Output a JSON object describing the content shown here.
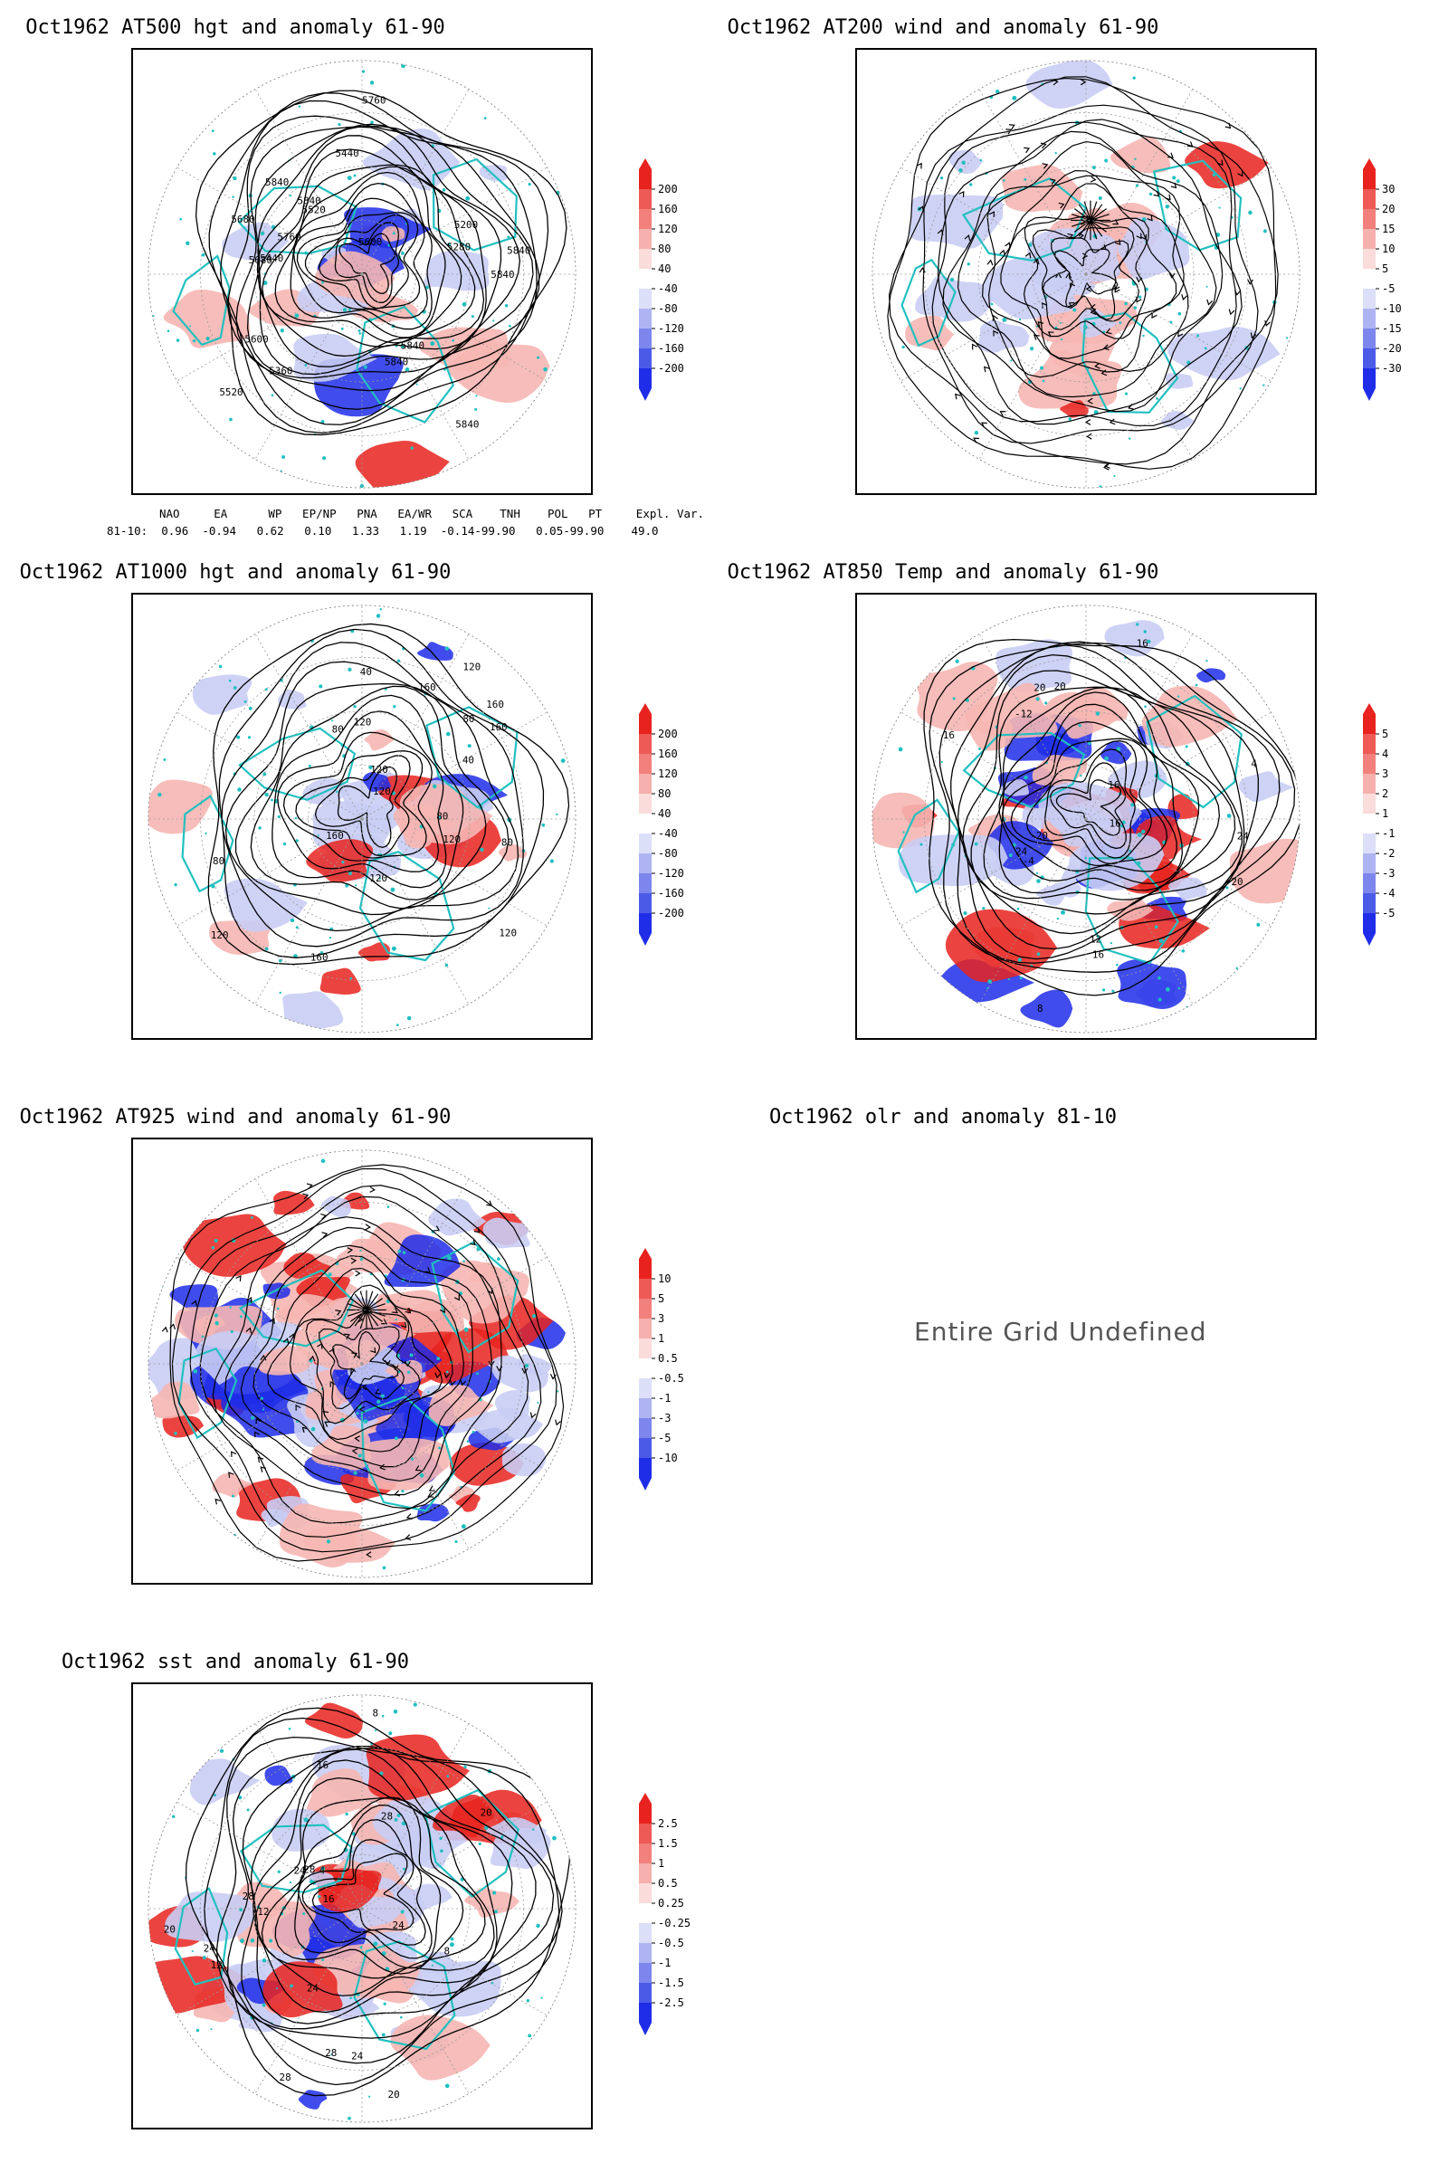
{
  "panels": [
    {
      "id": "p1",
      "title": "Oct1962 AT500 hgt and anomaly 61-90",
      "contour_labels": [
        "5840",
        "5840",
        "5840",
        "5840",
        "5760",
        "5680",
        "5600",
        "5520",
        "5440",
        "5200",
        "5280",
        "5360",
        "5440",
        "5520",
        "5600",
        "5680",
        "5760",
        "5840",
        "5840",
        "5840"
      ],
      "colorbar": [
        "200",
        "160",
        "120",
        "80",
        "40",
        "-40",
        "-80",
        "-120",
        "-160",
        "-200"
      ]
    },
    {
      "id": "p2",
      "title": "Oct1962 AT200 wind and anomaly 61-90",
      "colorbar": [
        "30",
        "20",
        "15",
        "10",
        "5",
        "-5",
        "-10",
        "-15",
        "-20",
        "-30"
      ]
    },
    {
      "id": "p3",
      "title": "Oct1962 AT1000 hgt and anomaly 61-90",
      "contour_labels": [
        "120",
        "160",
        "160",
        "120",
        "160",
        "80",
        "80",
        "120",
        "120",
        "120",
        "80",
        "160",
        "120",
        "160",
        "120",
        "80",
        "120",
        "40",
        "40",
        "80"
      ],
      "colorbar": [
        "200",
        "160",
        "120",
        "80",
        "40",
        "-40",
        "-80",
        "-120",
        "-160",
        "-200"
      ]
    },
    {
      "id": "p4",
      "title": "Oct1962 AT850 Temp and anomaly 61-90",
      "contour_labels": [
        "16",
        "12",
        "16",
        "8",
        "4",
        "-4",
        "-12",
        "-20",
        "16",
        "20",
        "24",
        "24",
        "20",
        "16",
        "16",
        "20"
      ],
      "colorbar": [
        "5",
        "4",
        "3",
        "2",
        "1",
        "-1",
        "-2",
        "-3",
        "-4",
        "-5"
      ]
    },
    {
      "id": "p5",
      "title": "Oct1962 AT925 wind and anomaly 61-90",
      "colorbar": [
        "10",
        "5",
        "3",
        "1",
        "0.5",
        "-0.5",
        "-1",
        "-3",
        "-5",
        "-10"
      ]
    },
    {
      "id": "p6",
      "title": "Oct1962 olr and anomaly 81-10",
      "undefined_text": "Entire Grid Undefined"
    },
    {
      "id": "p7",
      "title": "Oct1962 sst and anomaly 61-90",
      "contour_labels": [
        "28",
        "28",
        "24",
        "28",
        "24",
        "20",
        "16",
        "12",
        "8",
        "24",
        "24",
        "20",
        "16",
        "12",
        "8",
        "4",
        "20",
        "24",
        "28",
        "28"
      ],
      "colorbar": [
        "2.5",
        "1.5",
        "1",
        "0.5",
        "0.25",
        "-0.25",
        "-0.5",
        "-1",
        "-1.5",
        "-2.5"
      ]
    }
  ],
  "indices": {
    "header": "NAO     EA      WP   EP/NP   PNA   EA/WR   SCA    TNH    POL   PT     Expl. Var.",
    "row": "81-10:  0.96  -0.94   0.62   0.10   1.33   1.19  -0.14-99.90   0.05-99.90    49.0"
  },
  "colors": {
    "coast": "#20c0c0",
    "pos_strong": "#e8231f",
    "pos_weak": "#f6b6b3",
    "neg_strong": "#1f2de8",
    "neg_weak": "#c9cdf4",
    "grid": "#9a9a9a"
  }
}
